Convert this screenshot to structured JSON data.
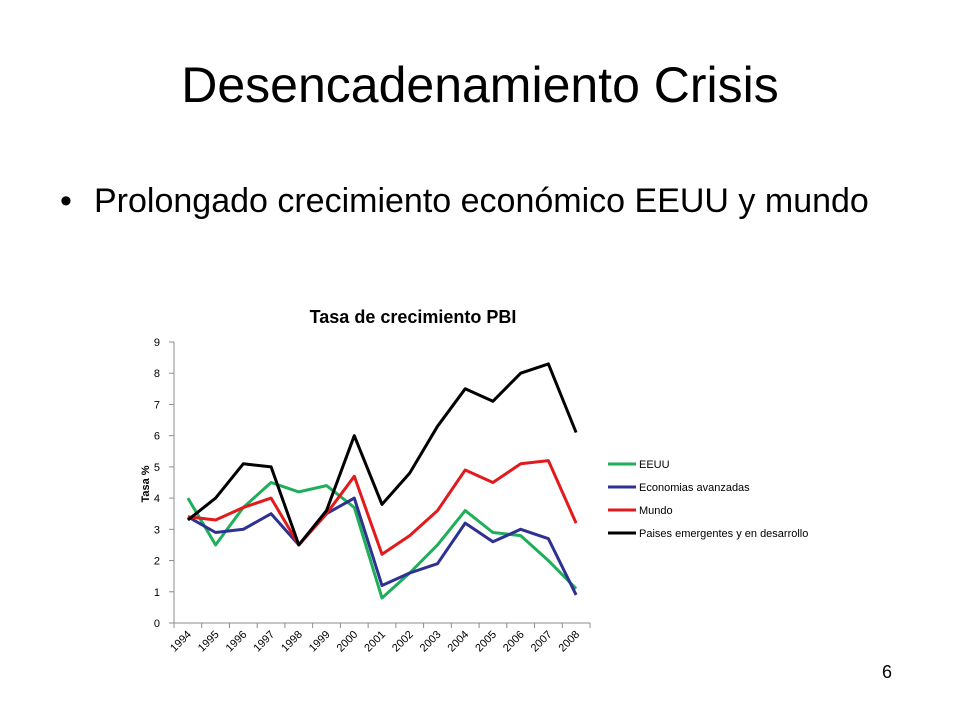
{
  "slide": {
    "title": "Desencadenamiento Crisis",
    "bullets": [
      {
        "marker": "•",
        "text": "Prolongado crecimiento económico EEUU y mundo"
      }
    ],
    "page_number": "6"
  },
  "chart_data": {
    "type": "line",
    "title": "Tasa de crecimiento PBI",
    "xlabel": "",
    "ylabel": "Tasa %",
    "categories": [
      "1994",
      "1995",
      "1996",
      "1997",
      "1998",
      "1999",
      "2000",
      "2001",
      "2002",
      "2003",
      "2004",
      "2005",
      "2006",
      "2007",
      "2008"
    ],
    "ylim": [
      0,
      9
    ],
    "yticks": [
      0,
      1,
      2,
      3,
      4,
      5,
      6,
      7,
      8,
      9
    ],
    "grid": false,
    "legend_position": "right",
    "series": [
      {
        "name": "EEUU",
        "color": "#1fae5a",
        "values": [
          4.0,
          2.5,
          3.7,
          4.5,
          4.2,
          4.4,
          3.7,
          0.8,
          1.6,
          2.5,
          3.6,
          2.9,
          2.8,
          2.0,
          1.1
        ]
      },
      {
        "name": "Economias avanzadas",
        "color": "#2e3192",
        "values": [
          3.4,
          2.9,
          3.0,
          3.5,
          2.5,
          3.5,
          4.0,
          1.2,
          1.6,
          1.9,
          3.2,
          2.6,
          3.0,
          2.7,
          0.9
        ]
      },
      {
        "name": "Mundo",
        "color": "#e31a1c",
        "values": [
          3.4,
          3.3,
          3.7,
          4.0,
          2.5,
          3.5,
          4.7,
          2.2,
          2.8,
          3.6,
          4.9,
          4.5,
          5.1,
          5.2,
          3.2
        ]
      },
      {
        "name": "Paises emergentes y en desarrollo",
        "color": "#000000",
        "values": [
          3.3,
          4.0,
          5.1,
          5.0,
          2.5,
          3.6,
          6.0,
          3.8,
          4.8,
          6.3,
          7.5,
          7.1,
          8.0,
          8.3,
          6.1
        ]
      }
    ]
  }
}
